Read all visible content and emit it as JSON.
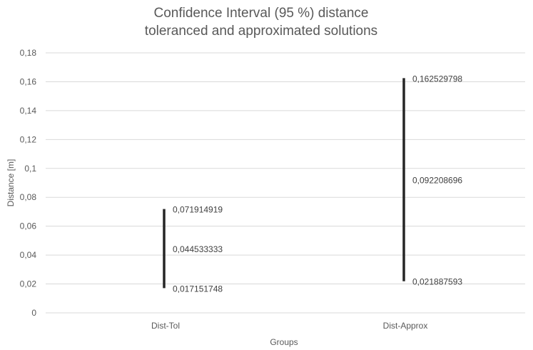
{
  "chart_data": {
    "type": "range",
    "title": [
      "Confidence Interval (95 %) distance",
      "toleranced and approximated solutions"
    ],
    "xlabel": "Groups",
    "ylabel": "Distance [m]",
    "categories": [
      "Dist-Tol",
      "Dist-Approx"
    ],
    "series": [
      {
        "values": [
          0.071914919,
          0.162529798
        ],
        "labels": [
          "0,071914919",
          "0,162529798"
        ]
      },
      {
        "values": [
          0.044533333,
          0.092208696
        ],
        "labels": [
          "0,044533333",
          "0,092208696"
        ]
      },
      {
        "values": [
          0.017151748,
          0.021887593
        ],
        "labels": [
          "0,017151748",
          "0,021887593"
        ]
      }
    ],
    "ylim": [
      0,
      0.18
    ],
    "yticks": [
      0,
      0.02,
      0.04,
      0.06,
      0.08,
      0.1,
      0.12,
      0.14,
      0.16,
      0.18
    ],
    "ytick_labels": [
      "0",
      "0,02",
      "0,04",
      "0,06",
      "0,08",
      "0,1",
      "0,12",
      "0,14",
      "0,16",
      "0,18"
    ],
    "grid": true,
    "legend": "none",
    "colors": {
      "bar": "#262626",
      "grid": "#d9d9d9",
      "text": "#595959"
    }
  }
}
